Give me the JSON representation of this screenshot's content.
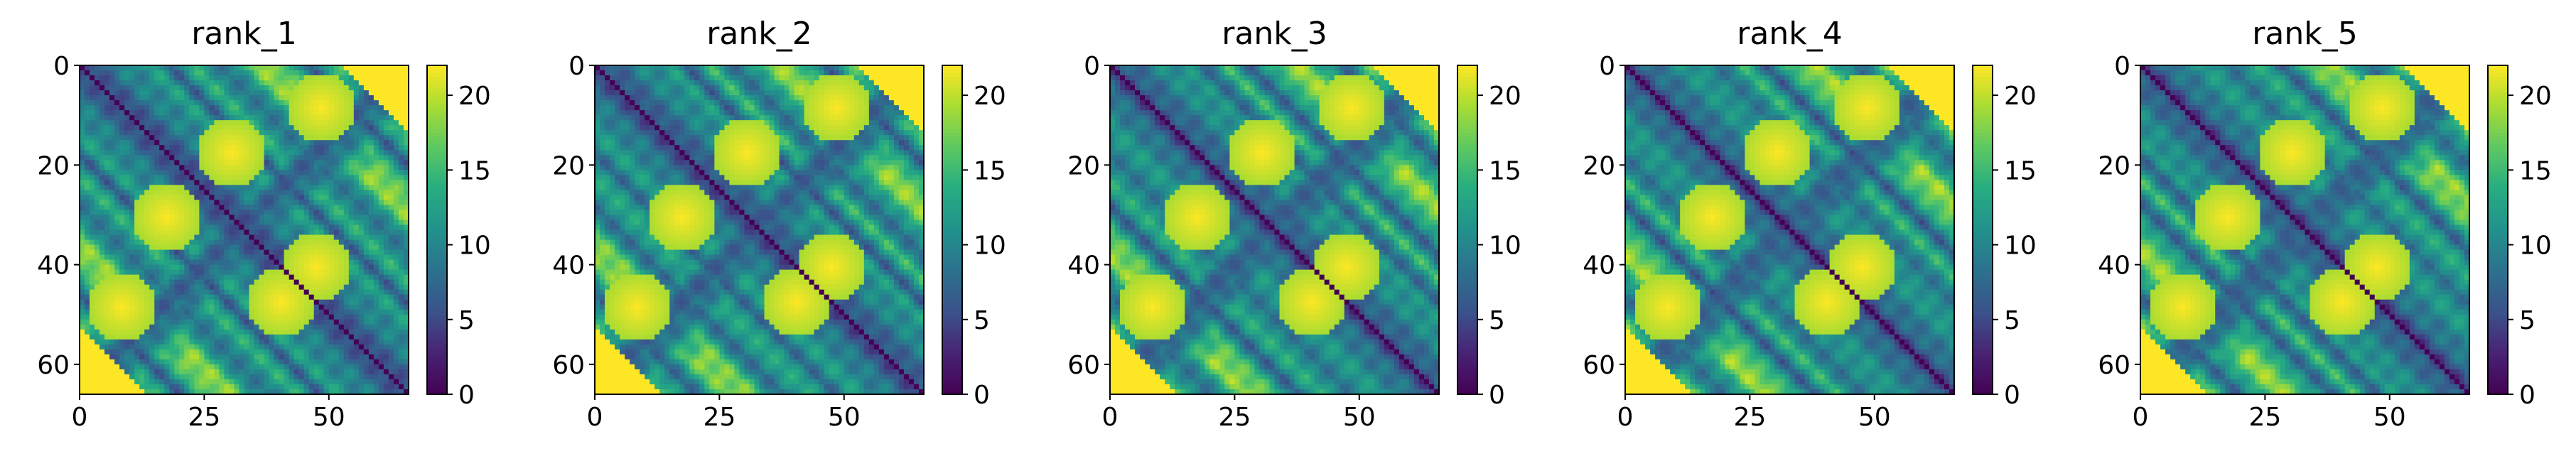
{
  "figure": {
    "description_free": true
  },
  "chart_data": [
    {
      "type": "heatmap",
      "title": "rank_1",
      "n": 66,
      "xticks": [
        0,
        25,
        50
      ],
      "yticks": [
        0,
        20,
        40,
        60
      ],
      "colorbar": {
        "min": 0,
        "max": 22,
        "ticks": [
          0,
          5,
          10,
          15,
          20
        ],
        "colormap": "viridis"
      },
      "variant": 0
    },
    {
      "type": "heatmap",
      "title": "rank_2",
      "n": 66,
      "xticks": [
        0,
        25,
        50
      ],
      "yticks": [
        0,
        20,
        40,
        60
      ],
      "colorbar": {
        "min": 0,
        "max": 22,
        "ticks": [
          0,
          5,
          10,
          15,
          20
        ],
        "colormap": "viridis"
      },
      "variant": 1
    },
    {
      "type": "heatmap",
      "title": "rank_3",
      "n": 66,
      "xticks": [
        0,
        25,
        50
      ],
      "yticks": [
        0,
        20,
        40,
        60
      ],
      "colorbar": {
        "min": 0,
        "max": 22,
        "ticks": [
          0,
          5,
          10,
          15,
          20
        ],
        "colormap": "viridis"
      },
      "variant": 2
    },
    {
      "type": "heatmap",
      "title": "rank_4",
      "n": 66,
      "xticks": [
        0,
        25,
        50
      ],
      "yticks": [
        0,
        20,
        40,
        60
      ],
      "colorbar": {
        "min": 0,
        "max": 22,
        "ticks": [
          0,
          5,
          10,
          15,
          20
        ],
        "colormap": "viridis"
      },
      "variant": 3
    },
    {
      "type": "heatmap",
      "title": "rank_5",
      "n": 66,
      "xticks": [
        0,
        25,
        50
      ],
      "yticks": [
        0,
        20,
        40,
        60
      ],
      "colorbar": {
        "min": 0,
        "max": 22,
        "ticks": [
          0,
          5,
          10,
          15,
          20
        ],
        "colormap": "viridis"
      },
      "variant": 4
    }
  ]
}
